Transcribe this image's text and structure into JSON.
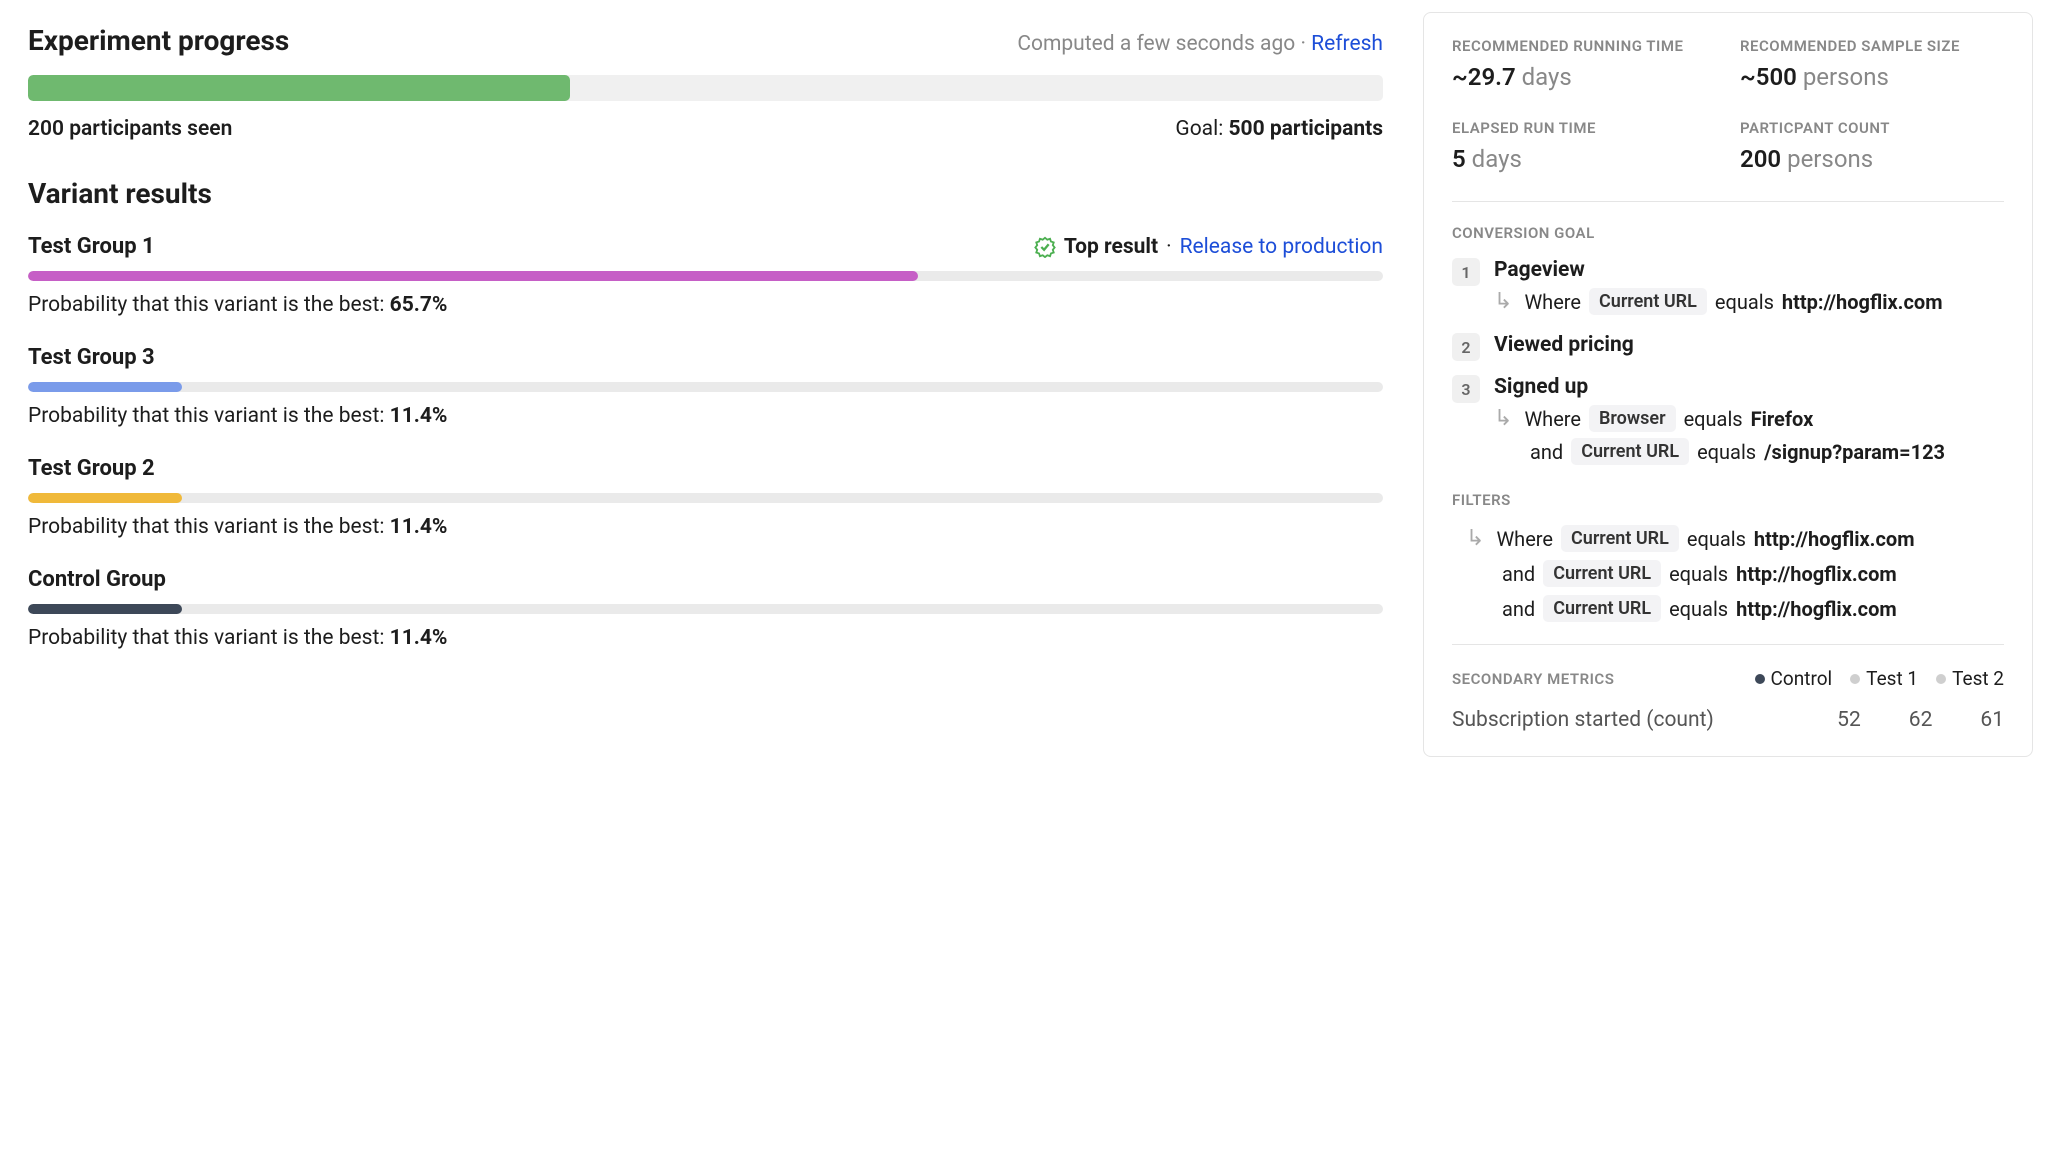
{
  "progress": {
    "title": "Experiment progress",
    "computed_text": "Computed a few seconds ago",
    "separator": " · ",
    "refresh_label": "Refresh",
    "bar_percent": 40,
    "bar_color": "#6fb96f",
    "bar_bg": "#f0f0f0",
    "seen_text": "200 participants seen",
    "goal_label": "Goal: ",
    "goal_value": "500 participants"
  },
  "variants": {
    "title": "Variant results",
    "top_result_label": "Top result",
    "top_separator": " · ",
    "release_label": "Release to production",
    "probability_prefix": "Probability that this variant is the best: ",
    "items": [
      {
        "name": "Test Group 1",
        "percent": 65.7,
        "percent_text": "65.7%",
        "bar_color": "#c65fc6",
        "is_top": true
      },
      {
        "name": "Test Group 3",
        "percent": 11.4,
        "percent_text": "11.4%",
        "bar_color": "#7a9bea",
        "is_top": false
      },
      {
        "name": "Test Group 2",
        "percent": 11.4,
        "percent_text": "11.4%",
        "bar_color": "#f0b93a",
        "is_top": false
      },
      {
        "name": "Control Group",
        "percent": 11.4,
        "percent_text": "11.4%",
        "bar_color": "#3d4858",
        "is_top": false
      }
    ],
    "bar_bg": "#eaeaea"
  },
  "stats": {
    "running_time": {
      "label": "Recommended running time",
      "value": "~29.7",
      "unit": " days"
    },
    "sample_size": {
      "label": "Recommended sample size",
      "value": "~500",
      "unit": " persons"
    },
    "elapsed": {
      "label": "Elapsed run time",
      "value": "5",
      "unit": " days"
    },
    "participants": {
      "label": "Particpant count",
      "value": "200",
      "unit": " persons"
    }
  },
  "conversion": {
    "label": "Conversion goal",
    "where_word": "Where",
    "equals_word": "equals",
    "and_word": "and",
    "steps": [
      {
        "num": "1",
        "title": "Pageview",
        "conditions": [
          {
            "type": "where",
            "tag": "Current URL",
            "value": "http://hogflix.com"
          }
        ]
      },
      {
        "num": "2",
        "title": "Viewed pricing",
        "conditions": []
      },
      {
        "num": "3",
        "title": "Signed up",
        "conditions": [
          {
            "type": "where",
            "tag": "Browser",
            "value": "Firefox"
          },
          {
            "type": "and",
            "tag": "Current URL",
            "value": "/signup?param=123"
          }
        ]
      }
    ]
  },
  "filters": {
    "label": "Filters",
    "where_word": "Where",
    "equals_word": "equals",
    "and_word": "and",
    "items": [
      {
        "type": "where",
        "tag": "Current URL",
        "value": "http://hogflix.com"
      },
      {
        "type": "and",
        "tag": "Current URL",
        "value": "http://hogflix.com"
      },
      {
        "type": "and",
        "tag": "Current URL",
        "value": "http://hogflix.com"
      }
    ]
  },
  "secondary": {
    "label": "Secondary metrics",
    "legend": [
      {
        "name": "Control",
        "color": "#3d4858"
      },
      {
        "name": "Test 1",
        "color": "#cfcfcf"
      },
      {
        "name": "Test 2",
        "color": "#cfcfcf"
      }
    ],
    "metric_name": "Subscription started (count)",
    "values": [
      "52",
      "62",
      "61"
    ]
  },
  "colors": {
    "link": "#1d4ed8",
    "badge_green": "#4caf50"
  }
}
